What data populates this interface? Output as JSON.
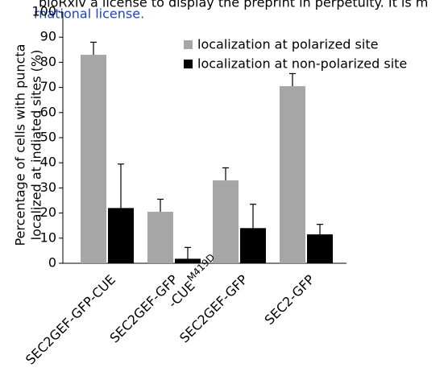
{
  "overlay_text": [
    "bioRxiv a license to display the preprint in perpetuity. It is m",
    "rnational license."
  ],
  "chart_data": {
    "type": "bar",
    "ylabel": [
      "Percentage of cells with puncta",
      "localized at indiated sites (%)"
    ],
    "categories": [
      "SEC2GEF-GFP-CUE",
      [
        "SEC2GEF-GFP",
        "-CUE"
      ],
      "SEC2GEF-GFP",
      "SEC2-GFP"
    ],
    "category_superscripts": [
      null,
      "M419D",
      null,
      null
    ],
    "series": [
      {
        "name": "localization at polarized site",
        "color": "#a6a6a6",
        "values": [
          83,
          20.5,
          33,
          70.5
        ],
        "errors": [
          5,
          5,
          5,
          5
        ]
      },
      {
        "name": "localization at non-polarized site",
        "color": "#000000",
        "values": [
          22,
          1.8,
          14,
          11.5
        ],
        "errors": [
          17.5,
          4.5,
          9.5,
          4
        ]
      }
    ],
    "ylim": [
      0,
      100
    ],
    "yticks": [
      0,
      10,
      20,
      30,
      40,
      50,
      60,
      70,
      80,
      90,
      100
    ],
    "grid": false,
    "legend": "top-right"
  }
}
